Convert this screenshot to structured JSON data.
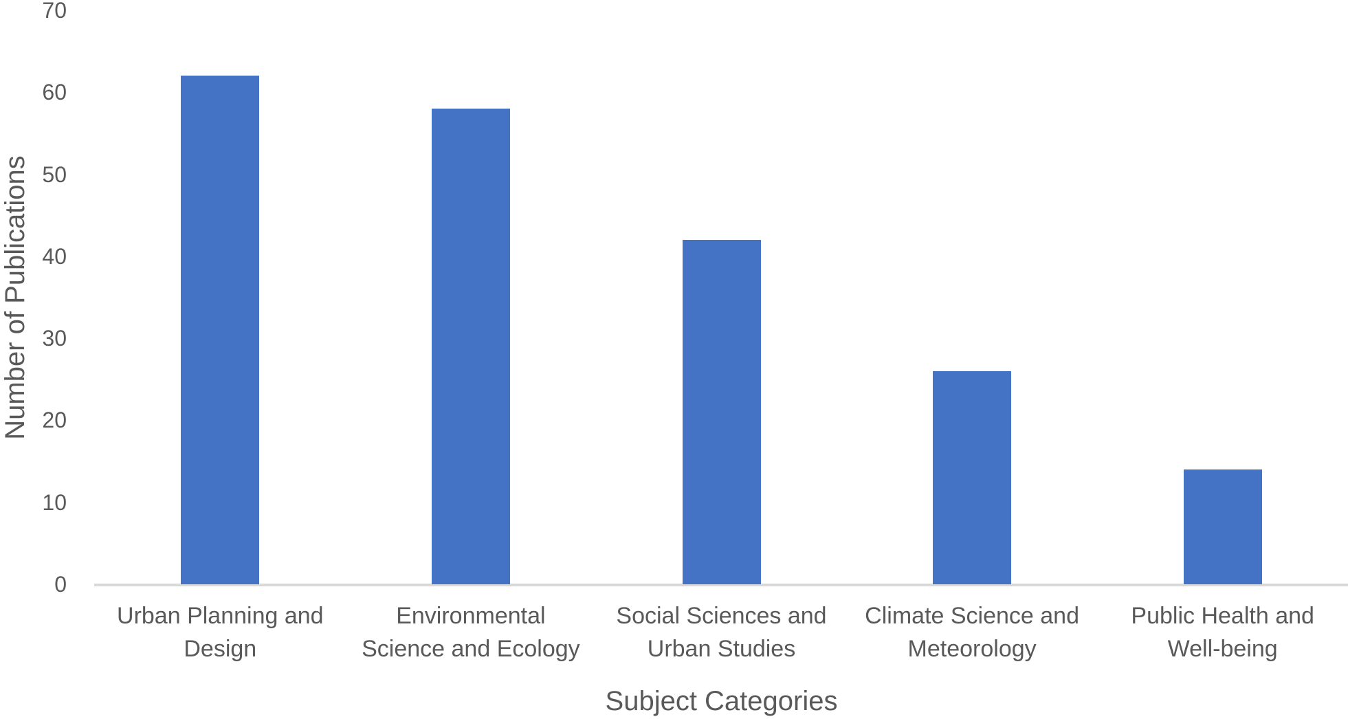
{
  "chart_data": {
    "type": "bar",
    "xlabel": "Subject Categories",
    "ylabel": "Number of Publications",
    "categories": [
      "Urban Planning and Design",
      "Environmental Science and Ecology",
      "Social Sciences and Urban Studies",
      "Climate Science and Meteorology",
      "Public Health and Well-being"
    ],
    "category_lines": [
      [
        "Urban Planning and",
        "Design"
      ],
      [
        "Environmental",
        "Science and Ecology"
      ],
      [
        "Social Sciences and",
        "Urban Studies"
      ],
      [
        "Climate Science and",
        "Meteorology"
      ],
      [
        "Public Health and",
        "Well-being"
      ]
    ],
    "values": [
      62,
      58,
      42,
      26,
      14
    ],
    "ylim": [
      0,
      70
    ],
    "yticks": [
      0,
      10,
      20,
      30,
      40,
      50,
      60,
      70
    ],
    "grid": false,
    "legend": false,
    "colors": {
      "bar": "#4472C4",
      "text": "#595959",
      "axis_line": "#D9D9D9",
      "background": "#FFFFFF"
    }
  }
}
